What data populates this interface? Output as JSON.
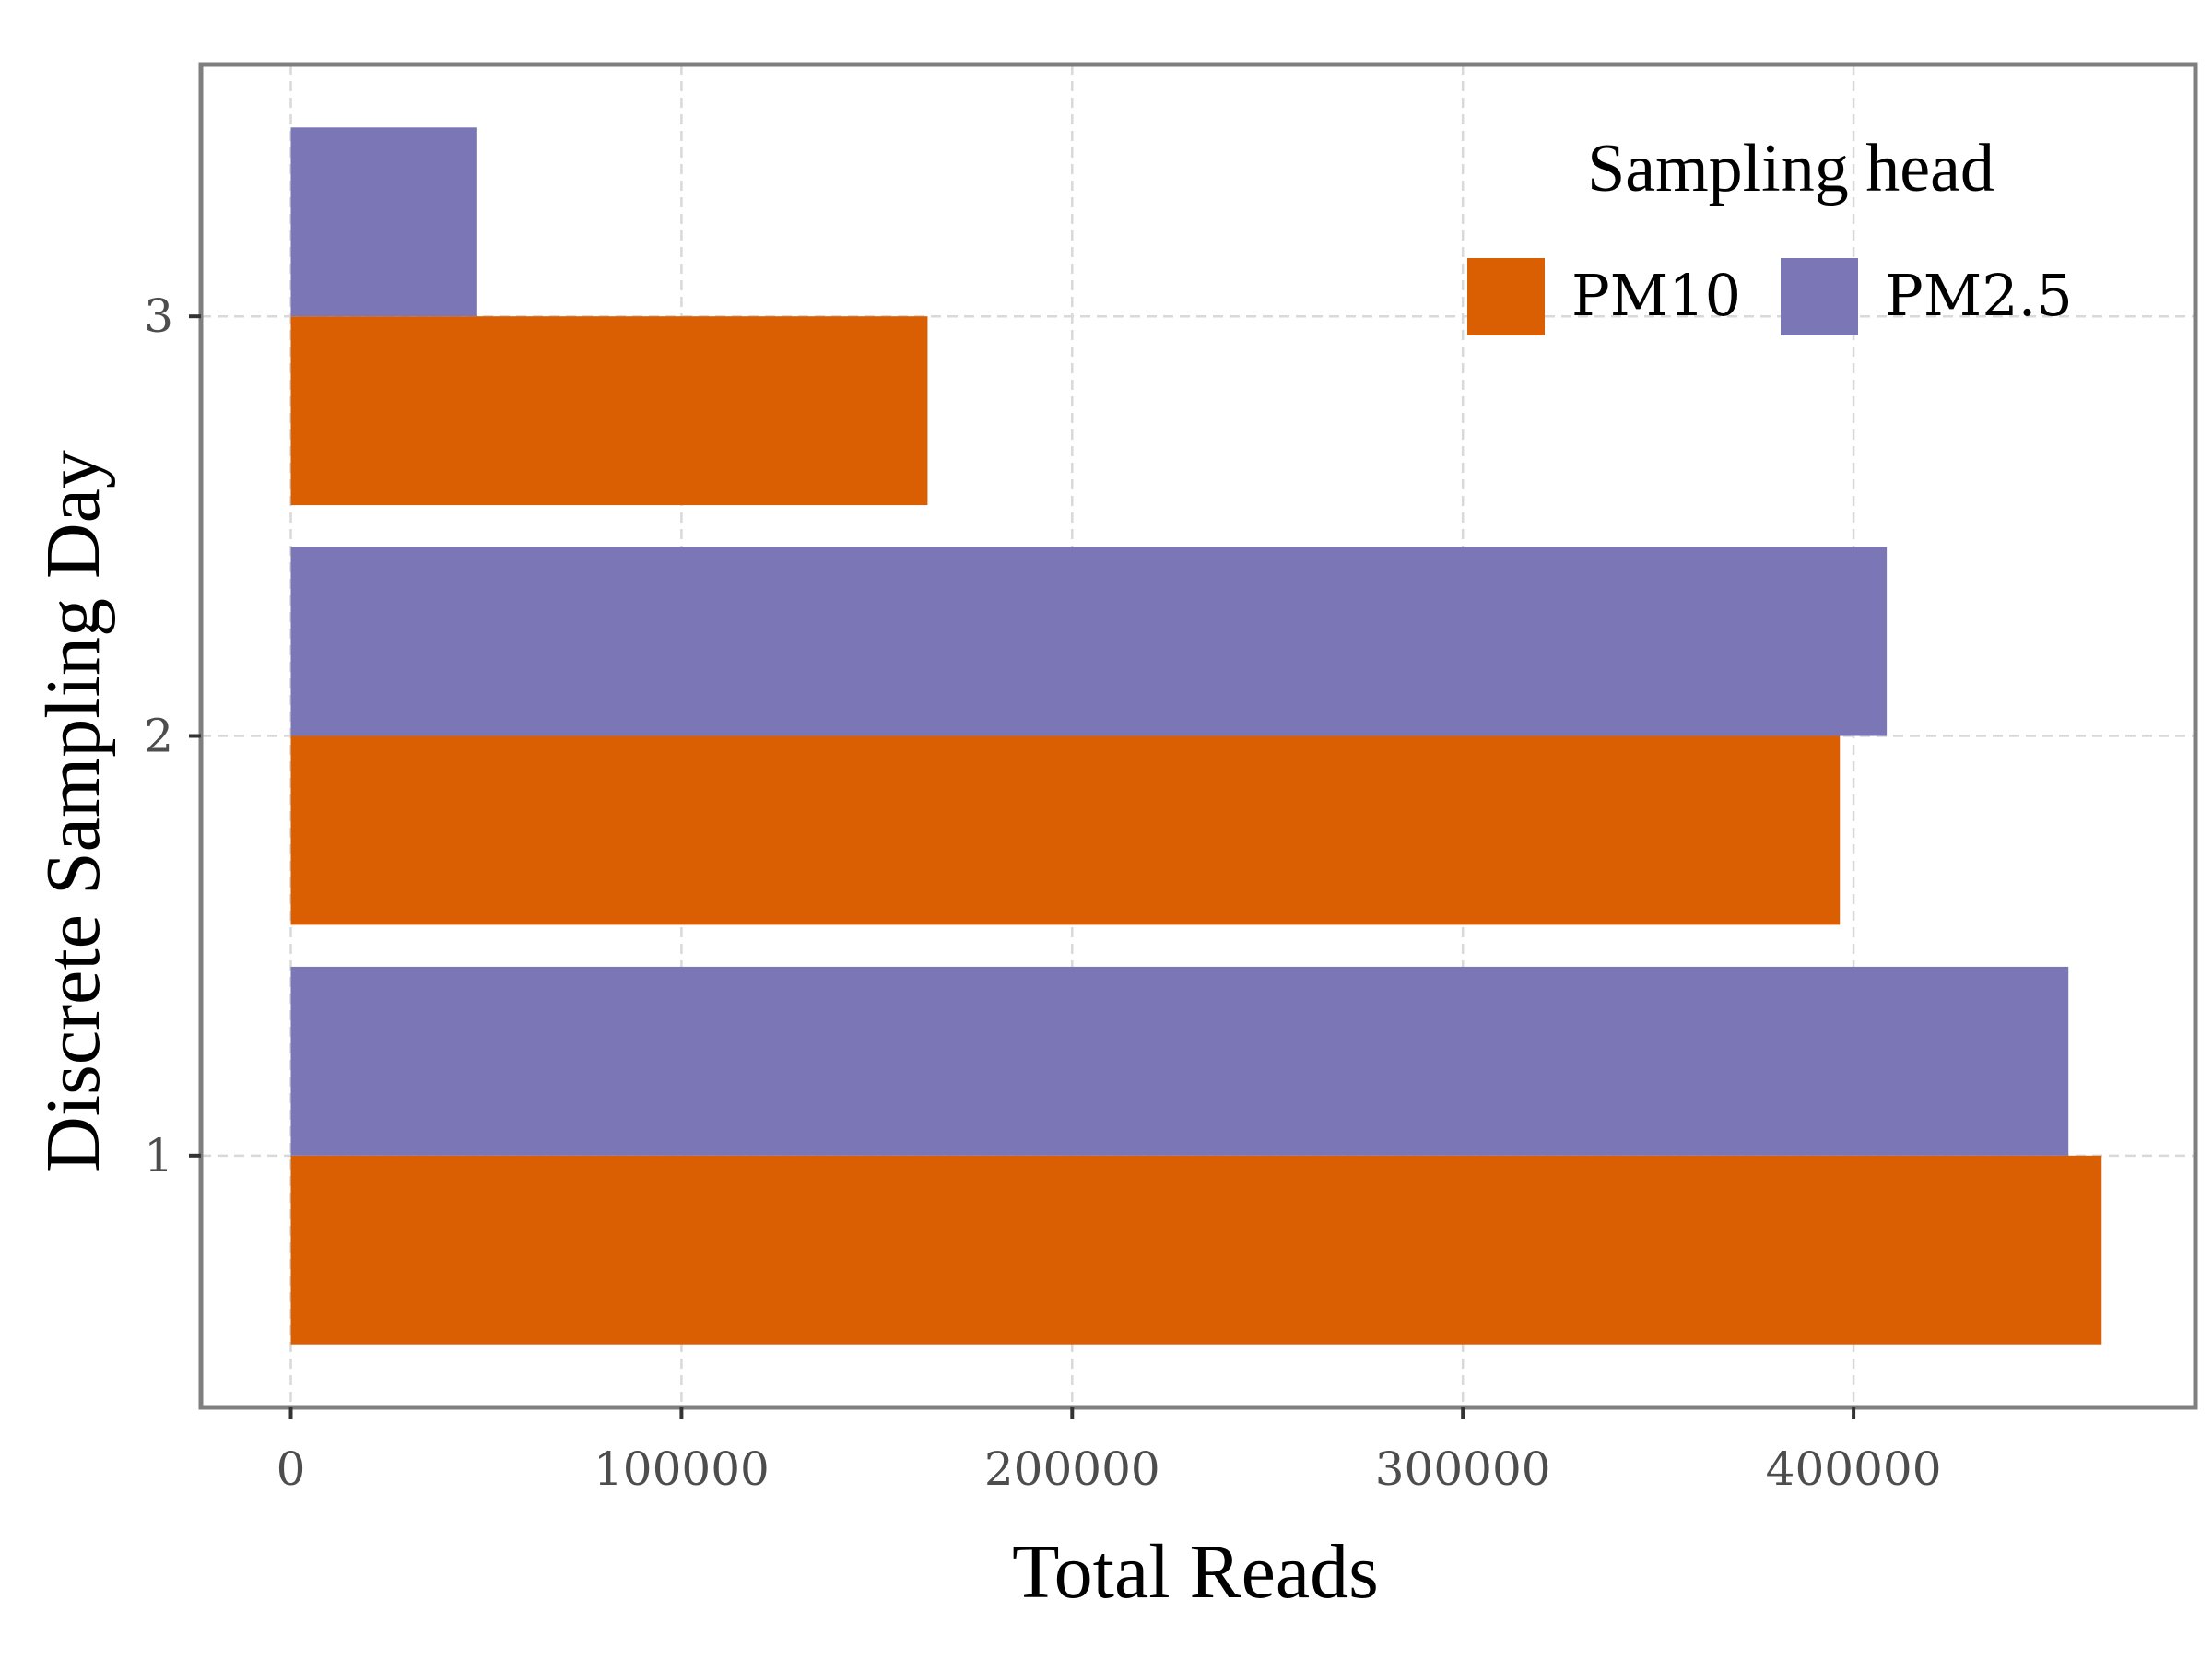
{
  "chart_data": {
    "type": "bar",
    "orientation": "horizontal",
    "categories": [
      "1",
      "2",
      "3"
    ],
    "series": [
      {
        "name": "PM10",
        "values": [
          463500,
          396500,
          163000
        ],
        "color": "#d95f02"
      },
      {
        "name": "PM2.5",
        "values": [
          455000,
          408500,
          47500
        ],
        "color": "#7b77b6"
      }
    ],
    "title": "",
    "xlabel": "Total Reads",
    "ylabel": "Discrete Sampling Day",
    "xlim": [
      -23000,
      487500
    ],
    "xticks": [
      0,
      100000,
      200000,
      300000,
      400000
    ],
    "xtick_labels": [
      "0",
      "100000",
      "200000",
      "300000",
      "400000"
    ],
    "grid": true,
    "legend": {
      "title": "Sampling head",
      "position": "top-right"
    },
    "colors": {
      "panel_border": "#7f7f7f",
      "grid": "#d9d9d9",
      "tick_text": "#4d4d4d"
    }
  }
}
